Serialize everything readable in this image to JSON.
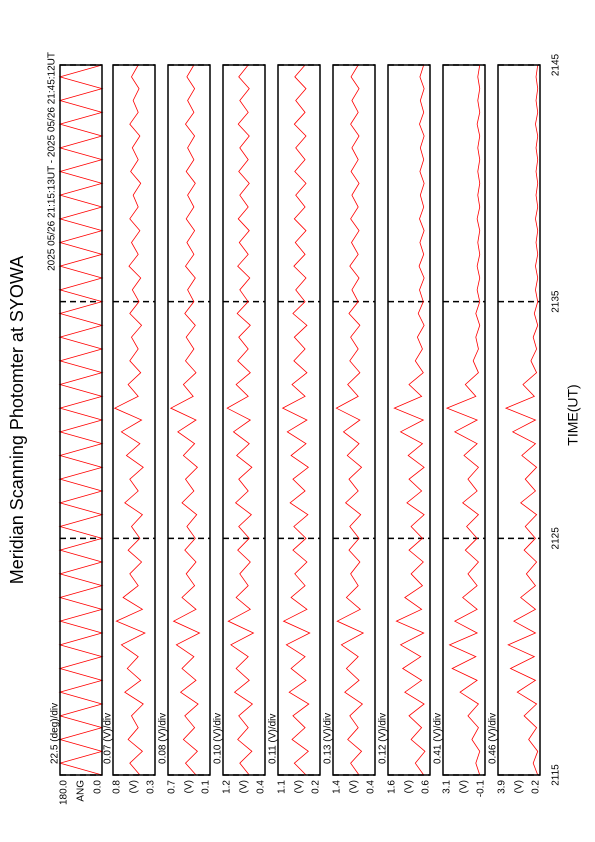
{
  "chart_data": {
    "type": "line",
    "title": "Meridian Scanning Photomter at SYOWA",
    "subtitle": "2025 05/26 21:15:13UT - 2025 05/26 21:45:12UT",
    "xlabel": "TIME(UT)",
    "xlim": [
      2115,
      2145
    ],
    "xticks": [
      2115,
      2125,
      2135,
      2145
    ],
    "color": "#ff0000",
    "x": [
      2115,
      2115.5,
      2116,
      2116.5,
      2117,
      2117.5,
      2118,
      2118.5,
      2119,
      2119.5,
      2120,
      2120.5,
      2121,
      2121.5,
      2122,
      2122.5,
      2123,
      2123.5,
      2124,
      2124.5,
      2125,
      2125.5,
      2126,
      2126.5,
      2127,
      2127.5,
      2128,
      2128.5,
      2129,
      2129.5,
      2130,
      2130.5,
      2131,
      2131.5,
      2132,
      2132.5,
      2133,
      2133.5,
      2134,
      2134.5,
      2135,
      2135.5,
      2136,
      2136.5,
      2137,
      2137.5,
      2138,
      2138.5,
      2139,
      2139.5,
      2140,
      2140.5,
      2141,
      2141.5,
      2142,
      2142.5,
      2143,
      2143.5,
      2144,
      2144.5,
      2145
    ],
    "panels": [
      {
        "unit": "ANG",
        "scale": "22.5 (deg)/div",
        "ylim": [
          0,
          180
        ],
        "yticks": [
          {
            "value": 0,
            "label": "0.0"
          },
          {
            "value": 180,
            "label": "180.0"
          }
        ],
        "values": [
          0,
          180,
          0,
          180,
          0,
          180,
          0,
          180,
          0,
          180,
          0,
          180,
          0,
          180,
          0,
          180,
          0,
          180,
          0,
          180,
          0,
          180,
          0,
          180,
          0,
          180,
          0,
          180,
          0,
          180,
          0,
          180,
          0,
          180,
          0,
          180,
          0,
          180,
          0,
          180,
          0,
          180,
          0,
          180,
          0,
          180,
          0,
          180,
          0,
          180,
          0,
          180,
          0,
          180,
          0,
          180,
          0,
          180,
          0,
          180,
          0
        ]
      },
      {
        "unit": "(V)",
        "scale": "0.07 (V)/div",
        "ylim": [
          0.3,
          0.8
        ],
        "yticks": [
          0.3,
          0.8
        ],
        "values": [
          0.48,
          0.6,
          0.45,
          0.62,
          0.5,
          0.58,
          0.44,
          0.66,
          0.47,
          0.63,
          0.5,
          0.7,
          0.42,
          0.76,
          0.45,
          0.68,
          0.5,
          0.6,
          0.46,
          0.62,
          0.48,
          0.58,
          0.45,
          0.66,
          0.5,
          0.6,
          0.44,
          0.64,
          0.48,
          0.7,
          0.46,
          0.78,
          0.5,
          0.62,
          0.47,
          0.6,
          0.5,
          0.58,
          0.46,
          0.6,
          0.49,
          0.57,
          0.47,
          0.61,
          0.5,
          0.58,
          0.48,
          0.6,
          0.5,
          0.56,
          0.47,
          0.59,
          0.5,
          0.57,
          0.48,
          0.6,
          0.5,
          0.56,
          0.49,
          0.58,
          0.5
        ]
      },
      {
        "unit": "(V)",
        "scale": "0.08 (V)/div",
        "ylim": [
          0.1,
          0.7
        ],
        "yticks": [
          0.1,
          0.7
        ],
        "values": [
          0.3,
          0.45,
          0.28,
          0.48,
          0.32,
          0.46,
          0.27,
          0.52,
          0.3,
          0.5,
          0.33,
          0.58,
          0.25,
          0.62,
          0.3,
          0.5,
          0.32,
          0.44,
          0.3,
          0.46,
          0.31,
          0.43,
          0.29,
          0.5,
          0.33,
          0.45,
          0.28,
          0.48,
          0.32,
          0.56,
          0.3,
          0.66,
          0.34,
          0.48,
          0.3,
          0.45,
          0.33,
          0.44,
          0.31,
          0.46,
          0.33,
          0.42,
          0.31,
          0.45,
          0.33,
          0.43,
          0.32,
          0.44,
          0.33,
          0.42,
          0.31,
          0.44,
          0.33,
          0.42,
          0.32,
          0.45,
          0.33,
          0.42,
          0.32,
          0.43,
          0.33
        ]
      },
      {
        "unit": "(V)",
        "scale": "0.10 (V)/div",
        "ylim": [
          0.4,
          1.2
        ],
        "yticks": [
          0.4,
          1.2
        ],
        "values": [
          0.7,
          0.88,
          0.65,
          0.92,
          0.72,
          0.9,
          0.64,
          0.98,
          0.7,
          0.95,
          0.72,
          1.05,
          0.62,
          1.1,
          0.68,
          0.95,
          0.72,
          0.88,
          0.68,
          0.92,
          0.7,
          0.9,
          0.66,
          0.96,
          0.72,
          0.9,
          0.65,
          0.94,
          0.7,
          1.0,
          0.68,
          1.12,
          0.72,
          0.95,
          0.68,
          0.92,
          0.72,
          0.9,
          0.68,
          0.93,
          0.72,
          0.88,
          0.69,
          0.92,
          0.72,
          0.89,
          0.7,
          0.91,
          0.72,
          0.88,
          0.7,
          0.9,
          0.72,
          0.88,
          0.7,
          0.91,
          0.72,
          0.88,
          0.7,
          0.9,
          0.72
        ]
      },
      {
        "unit": "(V)",
        "scale": "0.11 (V)/div",
        "ylim": [
          0.2,
          1.1
        ],
        "yticks": [
          0.2,
          1.1
        ],
        "values": [
          0.5,
          0.75,
          0.45,
          0.8,
          0.52,
          0.78,
          0.44,
          0.86,
          0.5,
          0.82,
          0.52,
          0.92,
          0.42,
          0.98,
          0.48,
          0.82,
          0.52,
          0.74,
          0.48,
          0.78,
          0.5,
          0.76,
          0.46,
          0.84,
          0.52,
          0.78,
          0.45,
          0.82,
          0.5,
          0.9,
          0.48,
          1.0,
          0.52,
          0.8,
          0.48,
          0.76,
          0.52,
          0.75,
          0.48,
          0.78,
          0.52,
          0.72,
          0.5,
          0.76,
          0.52,
          0.73,
          0.5,
          0.75,
          0.52,
          0.72,
          0.5,
          0.74,
          0.52,
          0.72,
          0.5,
          0.75,
          0.52,
          0.72,
          0.5,
          0.74,
          0.52
        ]
      },
      {
        "unit": "(V)",
        "scale": "0.13 (V)/div",
        "ylim": [
          0.4,
          1.4
        ],
        "yticks": [
          0.4,
          1.4
        ],
        "values": [
          0.78,
          0.98,
          0.72,
          1.05,
          0.8,
          1.0,
          0.7,
          1.12,
          0.78,
          1.08,
          0.8,
          1.2,
          0.68,
          1.3,
          0.75,
          1.08,
          0.8,
          0.98,
          0.76,
          1.02,
          0.78,
          1.0,
          0.74,
          1.1,
          0.8,
          1.02,
          0.72,
          1.06,
          0.78,
          1.15,
          0.76,
          1.32,
          0.8,
          1.05,
          0.76,
          1.0,
          0.8,
          0.98,
          0.76,
          1.02,
          0.8,
          0.95,
          0.78,
          1.0,
          0.8,
          0.96,
          0.78,
          0.98,
          0.8,
          0.95,
          0.78,
          0.97,
          0.8,
          0.95,
          0.78,
          0.98,
          0.8,
          0.95,
          0.78,
          0.97,
          0.8
        ]
      },
      {
        "unit": "(V)",
        "scale": "0.12 (V)/div",
        "ylim": [
          0.6,
          1.6
        ],
        "yticks": [
          0.6,
          1.6
        ],
        "values": [
          0.75,
          0.95,
          0.72,
          1.05,
          0.8,
          1.1,
          0.74,
          1.2,
          0.8,
          1.25,
          0.82,
          1.3,
          0.75,
          1.4,
          0.8,
          1.2,
          0.78,
          1.05,
          0.76,
          1.1,
          0.78,
          1.05,
          0.74,
          1.15,
          0.8,
          1.1,
          0.74,
          1.12,
          0.78,
          1.3,
          0.76,
          1.45,
          0.8,
          1.1,
          0.76,
          0.95,
          0.78,
          0.9,
          0.74,
          0.88,
          0.76,
          0.85,
          0.74,
          0.86,
          0.75,
          0.84,
          0.74,
          0.85,
          0.75,
          0.83,
          0.74,
          0.84,
          0.75,
          0.83,
          0.74,
          0.85,
          0.75,
          0.83,
          0.74,
          0.84,
          0.75
        ]
      },
      {
        "unit": "(V)",
        "scale": "0.41 (V)/div",
        "ylim": [
          -0.1,
          3.1
        ],
        "yticks": [
          -0.1,
          3.1
        ],
        "values": [
          0.3,
          0.6,
          0.3,
          0.9,
          0.4,
          1.2,
          0.4,
          1.8,
          0.5,
          2.4,
          0.6,
          2.6,
          0.5,
          2.2,
          0.5,
          1.6,
          0.5,
          1.2,
          0.4,
          1.4,
          0.5,
          1.3,
          0.4,
          1.6,
          0.5,
          1.2,
          0.4,
          1.5,
          0.5,
          2.2,
          0.5,
          2.8,
          0.6,
          1.4,
          0.4,
          0.8,
          0.4,
          0.6,
          0.3,
          0.6,
          0.3,
          0.5,
          0.3,
          0.5,
          0.3,
          0.45,
          0.3,
          0.5,
          0.3,
          0.45,
          0.3,
          0.45,
          0.3,
          0.45,
          0.3,
          0.5,
          0.3,
          0.45,
          0.3,
          0.45,
          0.3
        ]
      },
      {
        "unit": "(V)",
        "scale": "0.46 (V)/div",
        "ylim": [
          0.2,
          3.9
        ],
        "yticks": [
          0.2,
          3.9
        ],
        "values": [
          0.4,
          0.8,
          0.4,
          1.2,
          0.5,
          1.6,
          0.5,
          2.2,
          0.6,
          2.8,
          0.7,
          3.0,
          0.6,
          2.5,
          0.6,
          1.9,
          0.6,
          1.4,
          0.5,
          1.6,
          0.6,
          1.5,
          0.5,
          1.9,
          0.6,
          1.5,
          0.5,
          1.8,
          0.6,
          2.6,
          0.6,
          3.2,
          0.7,
          1.7,
          0.5,
          1.0,
          0.5,
          0.8,
          0.4,
          0.7,
          0.4,
          0.6,
          0.4,
          0.6,
          0.4,
          0.55,
          0.4,
          0.6,
          0.4,
          0.55,
          0.4,
          0.55,
          0.4,
          0.55,
          0.4,
          0.6,
          0.4,
          0.55,
          0.4,
          0.55,
          0.4
        ]
      }
    ]
  }
}
